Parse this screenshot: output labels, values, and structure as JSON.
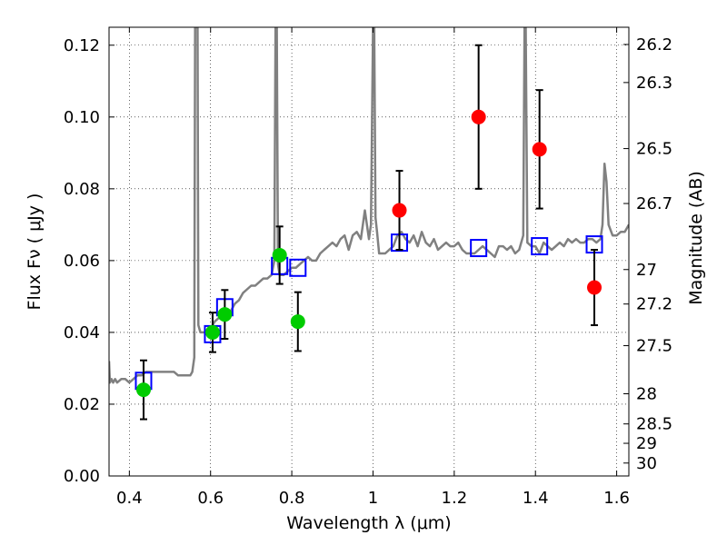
{
  "chart_data": {
    "type": "scatter",
    "title": "",
    "xlabel": "Wavelength  λ (μm)",
    "ylabel": "Flux  Fν  ( μJy )",
    "y2label": "Magnitude (AB)",
    "xlim": [
      0.35,
      1.63
    ],
    "ylim": [
      0.0,
      0.125
    ],
    "grid": true,
    "colors": {
      "spectrum": "#808080",
      "model_photometry": "#0000ff",
      "green_points": "#00cc00",
      "red_points": "#ff0000",
      "errorbars": "#000000"
    },
    "x_ticks": [
      0.4,
      0.6,
      0.8,
      1.0,
      1.2,
      1.4,
      1.6
    ],
    "x_tick_labels": [
      "0.4",
      "0.6",
      "0.8",
      "1",
      "1.2",
      "1.4",
      "1.6"
    ],
    "y_ticks": [
      0.0,
      0.02,
      0.04,
      0.06,
      0.08,
      0.1,
      0.12
    ],
    "y_tick_labels": [
      "0.00",
      "0.02",
      "0.04",
      "0.06",
      "0.08",
      "0.10",
      "0.12"
    ],
    "y2_ticks": [
      {
        "label": "26.2",
        "flux": 0.1202
      },
      {
        "label": "26.3",
        "flux": 0.1096
      },
      {
        "label": "26.5",
        "flux": 0.0912
      },
      {
        "label": "26.7",
        "flux": 0.0759
      },
      {
        "label": "27",
        "flux": 0.0575
      },
      {
        "label": "27.2",
        "flux": 0.0479
      },
      {
        "label": "27.5",
        "flux": 0.0363
      },
      {
        "label": "28",
        "flux": 0.0229
      },
      {
        "label": "28.5",
        "flux": 0.0145
      },
      {
        "label": "29",
        "flux": 0.0091
      },
      {
        "label": "30",
        "flux": 0.0036
      }
    ],
    "series": [
      {
        "kind": "line",
        "x": [
          0.35,
          0.352,
          0.356,
          0.36,
          0.365,
          0.37,
          0.38,
          0.39,
          0.4,
          0.41,
          0.42,
          0.43,
          0.44,
          0.45,
          0.46,
          0.47,
          0.48,
          0.49,
          0.5,
          0.51,
          0.52,
          0.53,
          0.54,
          0.55,
          0.555,
          0.56,
          0.562,
          0.565,
          0.568,
          0.57,
          0.575,
          0.58,
          0.59,
          0.6,
          0.61,
          0.62,
          0.63,
          0.64,
          0.65,
          0.66,
          0.67,
          0.68,
          0.69,
          0.7,
          0.71,
          0.72,
          0.73,
          0.74,
          0.75,
          0.757,
          0.76,
          0.763,
          0.766,
          0.77,
          0.78,
          0.79,
          0.8,
          0.81,
          0.82,
          0.83,
          0.84,
          0.85,
          0.86,
          0.87,
          0.88,
          0.89,
          0.9,
          0.91,
          0.92,
          0.93,
          0.94,
          0.95,
          0.96,
          0.97,
          0.98,
          0.99,
          0.995,
          1.0,
          1.003,
          1.006,
          1.01,
          1.015,
          1.02,
          1.03,
          1.04,
          1.05,
          1.06,
          1.07,
          1.08,
          1.09,
          1.1,
          1.11,
          1.12,
          1.13,
          1.14,
          1.15,
          1.16,
          1.17,
          1.18,
          1.19,
          1.2,
          1.21,
          1.22,
          1.23,
          1.24,
          1.25,
          1.26,
          1.27,
          1.28,
          1.29,
          1.3,
          1.31,
          1.32,
          1.33,
          1.34,
          1.35,
          1.36,
          1.37,
          1.373,
          1.376,
          1.38,
          1.39,
          1.4,
          1.41,
          1.42,
          1.43,
          1.44,
          1.45,
          1.46,
          1.47,
          1.48,
          1.49,
          1.5,
          1.51,
          1.52,
          1.53,
          1.54,
          1.55,
          1.56,
          1.565,
          1.57,
          1.575,
          1.58,
          1.59,
          1.6,
          1.61,
          1.62,
          1.63
        ],
        "y": [
          0.032,
          0.026,
          0.027,
          0.026,
          0.027,
          0.026,
          0.027,
          0.027,
          0.026,
          0.027,
          0.028,
          0.028,
          0.029,
          0.029,
          0.029,
          0.029,
          0.029,
          0.029,
          0.029,
          0.029,
          0.028,
          0.028,
          0.028,
          0.028,
          0.029,
          0.033,
          0.125,
          0.125,
          0.125,
          0.042,
          0.04,
          0.04,
          0.04,
          0.041,
          0.043,
          0.044,
          0.044,
          0.045,
          0.046,
          0.048,
          0.049,
          0.051,
          0.052,
          0.053,
          0.053,
          0.054,
          0.055,
          0.055,
          0.056,
          0.06,
          0.125,
          0.125,
          0.059,
          0.056,
          0.056,
          0.057,
          0.058,
          0.058,
          0.059,
          0.06,
          0.061,
          0.06,
          0.06,
          0.062,
          0.063,
          0.064,
          0.065,
          0.064,
          0.066,
          0.067,
          0.063,
          0.067,
          0.068,
          0.066,
          0.074,
          0.066,
          0.07,
          0.125,
          0.125,
          0.072,
          0.068,
          0.062,
          0.062,
          0.062,
          0.063,
          0.064,
          0.067,
          0.068,
          0.066,
          0.065,
          0.067,
          0.064,
          0.068,
          0.065,
          0.064,
          0.066,
          0.063,
          0.064,
          0.065,
          0.064,
          0.064,
          0.065,
          0.063,
          0.062,
          0.062,
          0.062,
          0.063,
          0.064,
          0.063,
          0.062,
          0.061,
          0.064,
          0.064,
          0.063,
          0.064,
          0.062,
          0.063,
          0.067,
          0.125,
          0.125,
          0.065,
          0.064,
          0.064,
          0.062,
          0.065,
          0.064,
          0.063,
          0.064,
          0.065,
          0.064,
          0.066,
          0.065,
          0.066,
          0.065,
          0.065,
          0.066,
          0.066,
          0.065,
          0.066,
          0.07,
          0.087,
          0.082,
          0.07,
          0.067,
          0.067,
          0.068,
          0.068,
          0.07
        ],
        "name": ""
      },
      {
        "kind": "scatter",
        "marker": "open-square",
        "x": [
          0.435,
          0.605,
          0.635,
          0.77,
          0.815,
          1.065,
          1.26,
          1.41,
          1.545
        ],
        "y": [
          0.0265,
          0.0395,
          0.047,
          0.0585,
          0.058,
          0.065,
          0.0635,
          0.064,
          0.0645
        ]
      },
      {
        "kind": "scatter",
        "marker": "filled-circle",
        "color": "#00cc00",
        "x": [
          0.435,
          0.605,
          0.635,
          0.77,
          0.815
        ],
        "y": [
          0.024,
          0.04,
          0.045,
          0.0615,
          0.043
        ],
        "yerr": [
          0.0082,
          0.0055,
          0.0068,
          0.008,
          0.0082
        ]
      },
      {
        "kind": "scatter",
        "marker": "filled-circle",
        "color": "#ff0000",
        "x": [
          1.065,
          1.26,
          1.41,
          1.545
        ],
        "y": [
          0.074,
          0.1,
          0.091,
          0.0525
        ],
        "yerr": [
          0.011,
          0.02,
          0.0165,
          0.0105
        ]
      }
    ]
  }
}
